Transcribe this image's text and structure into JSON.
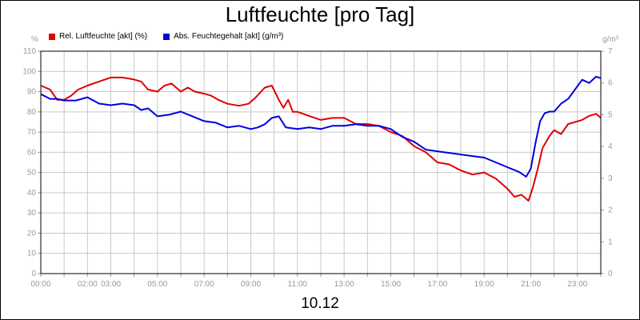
{
  "chart_data": {
    "type": "line",
    "title": "Luftfeuchte [pro Tag]",
    "date_label": "10.12",
    "y_left_unit": "%",
    "y_right_unit": "g/m³",
    "ylim_left": [
      0,
      110
    ],
    "ylim_right": [
      0,
      7
    ],
    "y_left_ticks": [
      "0",
      "10",
      "20",
      "30",
      "40",
      "50",
      "60",
      "70",
      "80",
      "90",
      "100",
      "110"
    ],
    "y_right_ticks": [
      "0",
      "1",
      "2",
      "3",
      "4",
      "5",
      "6",
      "7"
    ],
    "x_tick_labels": [
      "00:00",
      "02:00",
      "03:00",
      "05:00",
      "07:00",
      "09:00",
      "11:00",
      "13:00",
      "15:00",
      "17:00",
      "19:00",
      "21:00",
      "23:00"
    ],
    "x_tick_hours": [
      0,
      2,
      3,
      5,
      7,
      9,
      11,
      13,
      15,
      17,
      19,
      21,
      23
    ],
    "xlim_hours": [
      0,
      24
    ],
    "grid": true,
    "series": [
      {
        "name": "Rel. Luftfeuchte [akt] (%)",
        "axis": "left",
        "color": "#e00000",
        "x": [
          0,
          0.4,
          0.7,
          1.0,
          1.3,
          1.6,
          2.0,
          2.5,
          3.0,
          3.5,
          4.0,
          4.3,
          4.6,
          5.0,
          5.3,
          5.6,
          6.0,
          6.3,
          6.6,
          7.0,
          7.3,
          7.6,
          8.0,
          8.5,
          8.9,
          9.2,
          9.6,
          9.9,
          10.2,
          10.4,
          10.6,
          10.8,
          11.0,
          11.5,
          12.0,
          12.5,
          13.0,
          13.5,
          14.0,
          14.5,
          15.0,
          15.5,
          16.0,
          16.5,
          17.0,
          17.5,
          18.0,
          18.5,
          19.0,
          19.5,
          20.0,
          20.3,
          20.6,
          20.9,
          21.1,
          21.3,
          21.5,
          21.8,
          22.0,
          22.3,
          22.6,
          22.9,
          23.2,
          23.5,
          23.8,
          24.0
        ],
        "y": [
          93,
          91,
          86,
          86,
          88,
          91,
          93,
          95,
          97,
          97,
          96,
          95,
          91,
          90,
          93,
          94,
          90,
          92,
          90,
          89,
          88,
          86,
          84,
          83,
          84,
          87,
          92,
          93,
          86,
          82,
          86,
          80,
          80,
          78,
          76,
          77,
          77,
          74,
          74,
          73,
          70,
          68,
          63,
          60,
          55,
          54,
          51,
          49,
          50,
          47,
          42,
          38,
          39,
          36,
          43,
          52,
          62,
          68,
          71,
          69,
          74,
          75,
          76,
          78,
          79,
          77
        ]
      },
      {
        "name": "Abs. Feuchtegehalt [akt] (g/m³)",
        "axis": "right",
        "color": "#0000e0",
        "x": [
          0,
          0.4,
          0.7,
          1.0,
          1.5,
          2.0,
          2.5,
          3.0,
          3.5,
          4.0,
          4.3,
          4.6,
          5.0,
          5.5,
          6.0,
          6.5,
          7.0,
          7.5,
          8.0,
          8.5,
          9.0,
          9.3,
          9.6,
          9.9,
          10.2,
          10.5,
          11.0,
          11.5,
          12.0,
          12.5,
          13.0,
          13.5,
          14.0,
          14.5,
          15.0,
          15.5,
          16.0,
          16.5,
          17.0,
          17.5,
          18.0,
          18.5,
          19.0,
          19.5,
          20.0,
          20.5,
          20.8,
          21.0,
          21.2,
          21.4,
          21.6,
          21.8,
          22.0,
          22.3,
          22.6,
          22.9,
          23.2,
          23.5,
          23.8,
          24.0
        ],
        "y": [
          5.65,
          5.5,
          5.5,
          5.45,
          5.45,
          5.55,
          5.35,
          5.3,
          5.35,
          5.3,
          5.15,
          5.2,
          4.95,
          5.0,
          5.1,
          4.95,
          4.8,
          4.75,
          4.6,
          4.65,
          4.55,
          4.6,
          4.7,
          4.9,
          4.95,
          4.6,
          4.55,
          4.6,
          4.55,
          4.65,
          4.65,
          4.7,
          4.65,
          4.65,
          4.55,
          4.3,
          4.15,
          3.9,
          3.85,
          3.8,
          3.75,
          3.7,
          3.65,
          3.5,
          3.35,
          3.2,
          3.05,
          3.3,
          4.1,
          4.8,
          5.05,
          5.1,
          5.1,
          5.35,
          5.5,
          5.8,
          6.1,
          6.0,
          6.2,
          6.15
        ]
      }
    ]
  }
}
